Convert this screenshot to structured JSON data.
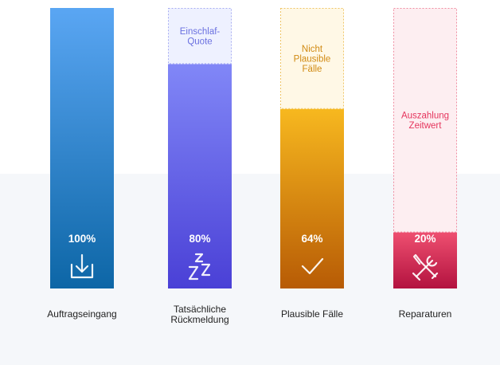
{
  "chart_data": {
    "type": "bar",
    "title": "",
    "xlabel": "",
    "ylabel": "",
    "ylim": [
      0,
      100
    ],
    "grid": false,
    "legend": "none",
    "categories": [
      "Auftragseingang",
      "Tatsächliche Rückmeldung",
      "Plausible Fälle",
      "Reparaturen"
    ],
    "category_lines": [
      [
        "Auftragseingang"
      ],
      [
        "Tatsächliche",
        "Rückmeldung"
      ],
      [
        "Plausible Fälle"
      ],
      [
        "Reparaturen"
      ]
    ],
    "values": [
      100,
      80,
      64,
      20
    ],
    "value_labels": [
      "100%",
      "80%",
      "64%",
      "20%"
    ],
    "loss_labels": [
      [],
      [
        "Einschlaf-",
        "Quote"
      ],
      [
        "Nicht",
        "Plausible",
        "Fälle"
      ],
      [
        "Auszahlung",
        "Zeitwert"
      ]
    ],
    "icons": [
      "download-icon",
      "sleep-zzz-icon",
      "checkmark-icon",
      "wrench-screwdriver-icon"
    ],
    "colors": {
      "bars": [
        [
          "#5aa6f3",
          "#0d66a6"
        ],
        [
          "#8187f7",
          "#4a40d6"
        ],
        [
          "#f7b81f",
          "#b75b05"
        ],
        [
          "#ee4f70",
          "#b3123f"
        ]
      ],
      "loss_fill": [
        "#eef1ff",
        "#eef1ff",
        "#fff8e6",
        "#fdeef1"
      ],
      "loss_border": [
        "#a6acf2",
        "#a6acf2",
        "#efc464",
        "#f08ca0"
      ],
      "loss_text": [
        "#6a70e0",
        "#6a70e0",
        "#d18a12",
        "#e5355d"
      ]
    }
  }
}
